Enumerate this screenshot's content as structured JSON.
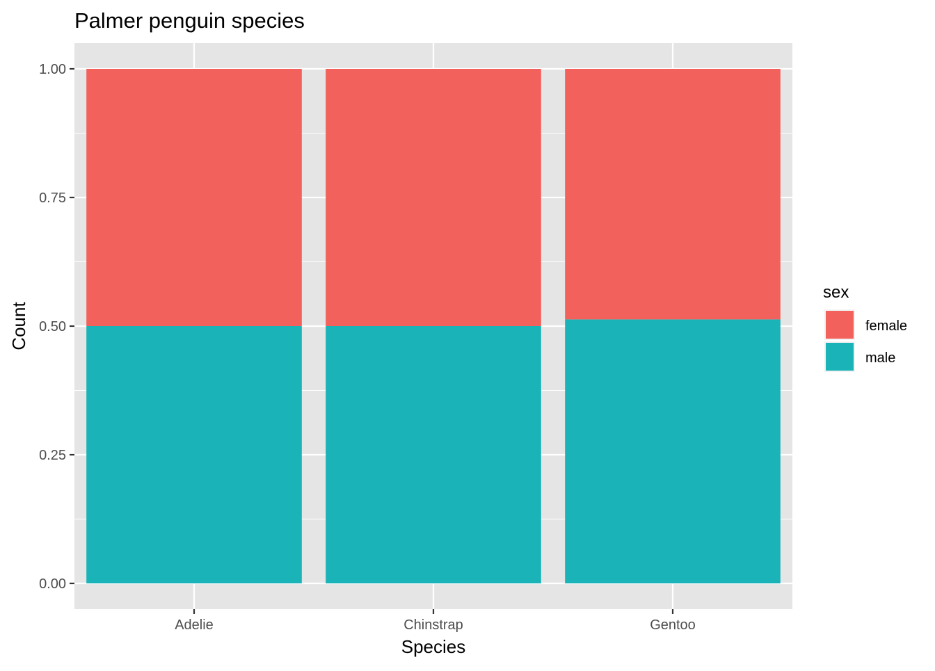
{
  "chart_data": {
    "type": "bar",
    "stacked": true,
    "position": "fill",
    "title": "Palmer penguin species",
    "xlabel": "Species",
    "ylabel": "Count",
    "categories": [
      "Adelie",
      "Chinstrap",
      "Gentoo"
    ],
    "series": [
      {
        "name": "male",
        "color": "#1AB3B8",
        "values": [
          0.5,
          0.5,
          0.513
        ]
      },
      {
        "name": "female",
        "color": "#F2615B",
        "values": [
          0.5,
          0.5,
          0.487
        ]
      }
    ],
    "ylim": [
      -0.05,
      1.05
    ],
    "yticks": [
      0.0,
      0.25,
      0.5,
      0.75,
      1.0
    ],
    "ytick_labels": [
      "0.00",
      "0.25",
      "0.50",
      "0.75",
      "1.00"
    ],
    "grid": true,
    "legend": {
      "title": "sex",
      "placement": "right",
      "entries": [
        {
          "label": "female",
          "color": "#F2615B"
        },
        {
          "label": "male",
          "color": "#1AB3B8"
        }
      ]
    },
    "panel_background": "#E5E5E5",
    "gridline_color": "#FFFFFF"
  }
}
